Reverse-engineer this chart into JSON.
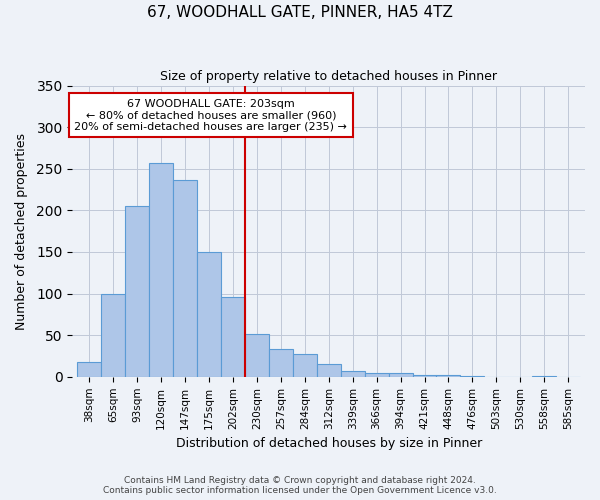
{
  "title": "67, WOODHALL GATE, PINNER, HA5 4TZ",
  "subtitle": "Size of property relative to detached houses in Pinner",
  "xlabel": "Distribution of detached houses by size in Pinner",
  "ylabel": "Number of detached properties",
  "bar_labels": [
    "38sqm",
    "65sqm",
    "93sqm",
    "120sqm",
    "147sqm",
    "175sqm",
    "202sqm",
    "230sqm",
    "257sqm",
    "284sqm",
    "312sqm",
    "339sqm",
    "366sqm",
    "394sqm",
    "421sqm",
    "448sqm",
    "476sqm",
    "503sqm",
    "530sqm",
    "558sqm",
    "585sqm"
  ],
  "bar_values": [
    18,
    100,
    205,
    257,
    236,
    150,
    96,
    52,
    34,
    27,
    15,
    7,
    5,
    5,
    2,
    2,
    1,
    0,
    0,
    1,
    0
  ],
  "bar_color": "#aec6e8",
  "bar_edge_color": "#5b9bd5",
  "vline_color": "#cc0000",
  "ylim": [
    0,
    350
  ],
  "yticks": [
    0,
    50,
    100,
    150,
    200,
    250,
    300,
    350
  ],
  "annotation_title": "67 WOODHALL GATE: 203sqm",
  "annotation_line1": "← 80% of detached houses are smaller (960)",
  "annotation_line2": "20% of semi-detached houses are larger (235) →",
  "annotation_box_color": "#ffffff",
  "annotation_box_edge": "#cc0000",
  "footer1": "Contains HM Land Registry data © Crown copyright and database right 2024.",
  "footer2": "Contains public sector information licensed under the Open Government Licence v3.0.",
  "background_color": "#eef2f8"
}
